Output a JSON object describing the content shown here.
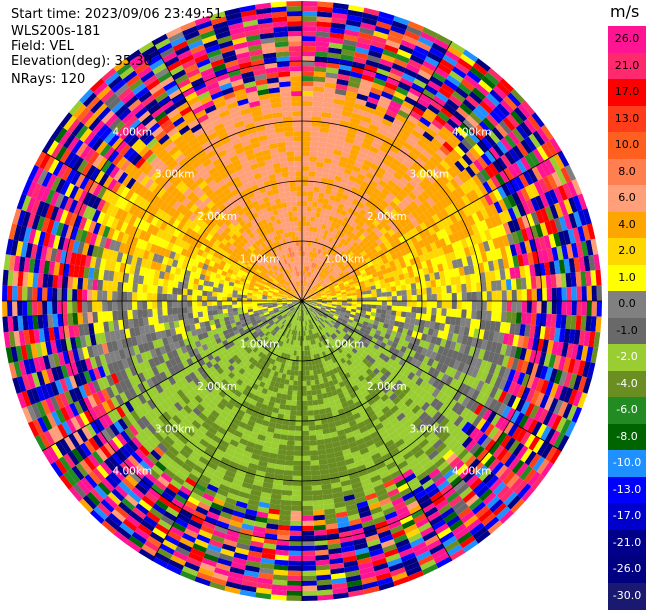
{
  "info": {
    "start_time": "Start time: 2023/09/06 23:49:51",
    "instrument": "WLS200s-181",
    "field": "Field: VEL",
    "elevation": "Elevation(deg): 35.30",
    "nrays": "NRays: 120"
  },
  "colorbar": {
    "unit": "m/s",
    "ticks": [
      "26.0",
      "21.0",
      "17.0",
      "13.0",
      "10.0",
      "8.0",
      "6.0",
      "4.0",
      "2.0",
      "1.0",
      "0.0",
      "-1.0",
      "-2.0",
      "-4.0",
      "-6.0",
      "-8.0",
      "-10.0",
      "-13.0",
      "-17.0",
      "-21.0",
      "-26.0",
      "-30.0"
    ],
    "colors": [
      "#ff1493",
      "#ff2a6e",
      "#ff0000",
      "#ff3d1a",
      "#ff5f1f",
      "#ff7f50",
      "#ffa07a",
      "#ffa500",
      "#ffd700",
      "#ffff00",
      "#808080",
      "#696969",
      "#9acd32",
      "#6b8e23",
      "#228b22",
      "#006400",
      "#1e90ff",
      "#0000ff",
      "#0000cd",
      "#00008b",
      "#000080",
      "#191970"
    ]
  },
  "chart_data": {
    "type": "ppi",
    "field": "VEL",
    "units": "m/s",
    "n_rays": 120,
    "elevation_deg": 35.3,
    "range_rings_km": [
      1.0,
      2.0,
      3.0,
      4.0
    ],
    "ring_labels": [
      "1.00km",
      "2.00km",
      "3.00km",
      "4.00km"
    ],
    "max_range_km": 5.0,
    "value_range": [
      -30,
      30
    ],
    "grid": true
  }
}
